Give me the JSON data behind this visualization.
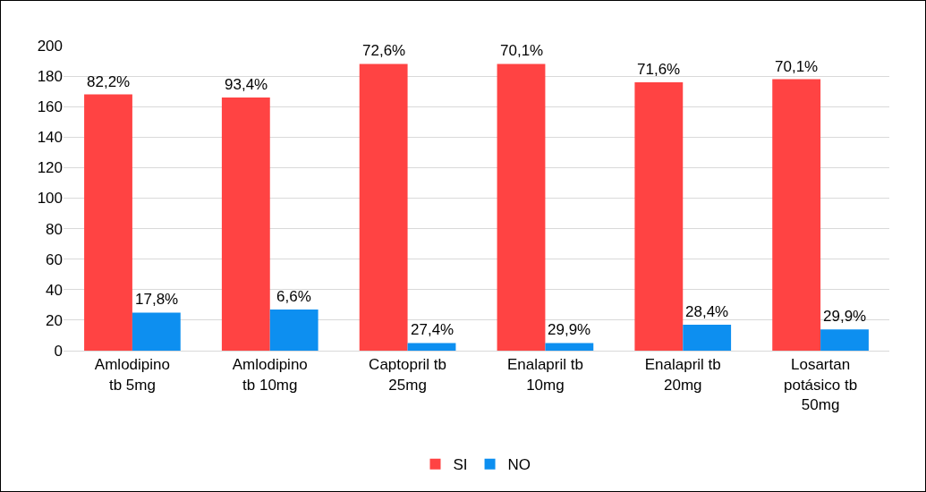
{
  "chart_data": {
    "type": "bar",
    "categories": [
      "Amlodipino tb 5mg",
      "Amlodipino tb 10mg",
      "Captopril tb 25mg",
      "Enalapril tb 10mg",
      "Enalapril tb 20mg",
      "Losartan potásico tb 50mg"
    ],
    "series": [
      {
        "name": "SI",
        "color": "#ff4343",
        "values": [
          168,
          166,
          188,
          188,
          176,
          178
        ]
      },
      {
        "name": "NO",
        "color": "#0d8ff0",
        "values": [
          25,
          27,
          5,
          5,
          17,
          14
        ]
      }
    ],
    "annotations": [
      {
        "text": "82,2%",
        "x": "Amlodipino tb 5mg",
        "y": 168
      },
      {
        "text": "93,4%",
        "x": "Amlodipino tb 10mg",
        "y": 166
      },
      {
        "text": "72,6%",
        "x": "Captopril tb 25mg",
        "y": 188
      },
      {
        "text": "70,1%",
        "x": "Enalapril tb 10mg",
        "y": 188
      },
      {
        "text": "71,6%",
        "x": "Enalapril tb 20mg",
        "y": 176
      },
      {
        "text": "70,1%",
        "x": "Losartan potásico tb 50mg",
        "y": 178
      },
      {
        "text": "17,8%",
        "x": "Amlodipino tb 5mg",
        "y": 25
      },
      {
        "text": "6,6%",
        "x": "Amlodipino tb 10mg",
        "y": 27
      },
      {
        "text": "27,4%",
        "x": "Captopril tb 25mg",
        "y": 5
      },
      {
        "text": "29,9%",
        "x": "Enalapril tb 10mg",
        "y": 5
      },
      {
        "text": "28,4%",
        "x": "Enalapril tb 20mg",
        "y": 17
      },
      {
        "text": "29,9%",
        "x": "Losartan potásico tb 50mg",
        "y": 14
      }
    ],
    "ylim": [
      0,
      200
    ],
    "yticks": [
      0,
      20,
      40,
      60,
      80,
      100,
      120,
      140,
      160,
      180,
      200
    ],
    "grid": "y",
    "legend": "bottom"
  }
}
